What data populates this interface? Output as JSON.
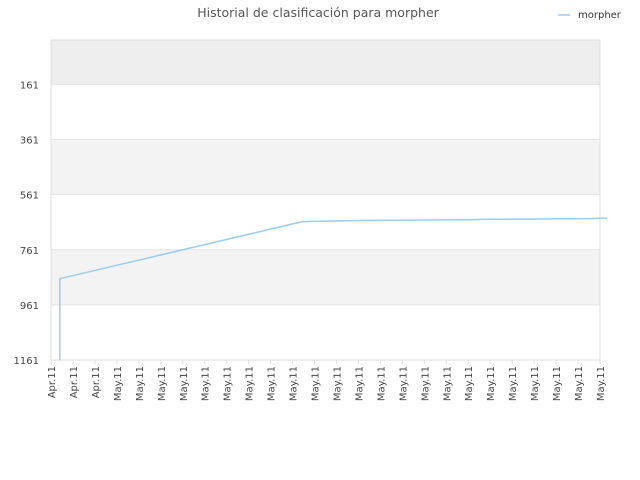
{
  "chart_data": {
    "type": "line",
    "title": "Historial de clasificación para morpher",
    "xlabel": "",
    "ylabel": "",
    "y_reversed": true,
    "ylim": [
      1161,
      0
    ],
    "y_ticks": [
      161,
      361,
      561,
      761,
      961,
      1161
    ],
    "x_tick_labels": [
      "Apr.11",
      "Apr.11",
      "Apr.11",
      "May.11",
      "May.11",
      "May.11",
      "May.11",
      "May.11",
      "May.11",
      "May.11",
      "May.11",
      "May.11",
      "May.11",
      "May.11",
      "May.11",
      "May.11",
      "May.11",
      "May.11",
      "May.11",
      "May.11",
      "May.11",
      "May.11",
      "May.11",
      "May.11",
      "May.11",
      "May.11"
    ],
    "grid": true,
    "band_colors": [
      "#eeeeee",
      "#ffffff",
      "#f3f3f3",
      "#ffffff",
      "#f3f3f3",
      "#ffffff"
    ],
    "legend": {
      "position": "top-right"
    },
    "series": [
      {
        "name": "morpher",
        "color": "#99ccf0",
        "x": [
          0.4,
          0.4,
          11.4,
          11.5,
          13.5,
          14.2,
          16.3,
          17.0,
          19.0,
          19.7,
          21.9,
          22.6,
          24.6,
          25.3
        ],
        "y": [
          1161,
          866,
          660,
          659,
          656,
          655,
          654,
          653,
          652,
          651,
          650,
          649,
          648,
          646
        ]
      }
    ]
  }
}
